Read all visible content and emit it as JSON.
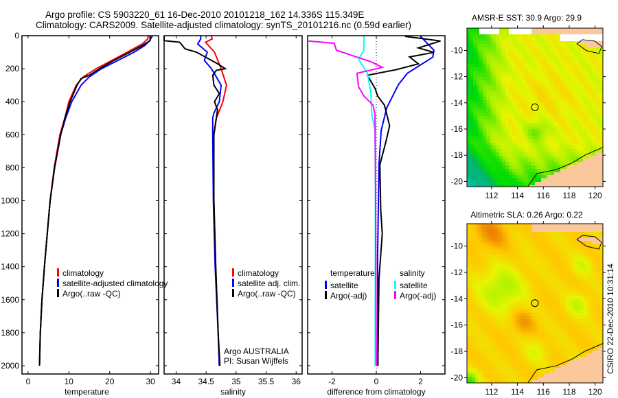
{
  "header": {
    "line1": "Argo profile: CS 5903220_61 16-Dec-2010 20101218_162 14.336S 115.349E",
    "line2": "Climatology: CARS2009. Satellite-adjusted climatology: synTS_20101216.nc (0.59d earlier)"
  },
  "footer_stamp": "CSIRO 22-Dec-2010 10:31:14",
  "chart_data": [
    {
      "type": "line",
      "id": "temperature",
      "xlabel": "temperature",
      "ylabel": "",
      "xlim": [
        -1.5,
        32
      ],
      "ylim": [
        2050,
        0
      ],
      "xticks": [
        0,
        10,
        20,
        30
      ],
      "yticks": [
        0,
        200,
        400,
        600,
        800,
        1000,
        1200,
        1400,
        1600,
        1800,
        2000
      ],
      "legend": [
        "climatology",
        "satellite-adjusted climatology",
        "Argo(..raw -QC)"
      ],
      "legend_position": "lower-right",
      "series": [
        {
          "name": "climatology",
          "color": "#ff0000",
          "depth": [
            0,
            20,
            50,
            100,
            150,
            200,
            250,
            300,
            400,
            500,
            600,
            800,
            1000,
            1200,
            1400,
            1600,
            1800,
            2000
          ],
          "values": [
            29.5,
            29.3,
            28,
            24.3,
            20.5,
            16.7,
            13.5,
            11.8,
            10,
            9,
            7.8,
            6.4,
            5.4,
            4.7,
            4,
            3.4,
            3,
            2.8
          ]
        },
        {
          "name": "satellite-adjusted climatology",
          "color": "#0000ff",
          "depth": [
            0,
            30,
            60,
            100,
            150,
            200,
            250,
            300,
            400,
            500,
            600,
            800,
            1000,
            1200,
            1400,
            1600,
            1800,
            2000
          ],
          "values": [
            30.5,
            29.8,
            28.6,
            26,
            22,
            18,
            15,
            13,
            10.7,
            9.2,
            8,
            6.5,
            5.4,
            4.7,
            4,
            3.4,
            3,
            2.8
          ]
        },
        {
          "name": "Argo(..raw -QC)",
          "color": "#000000",
          "depth": [
            0,
            30,
            60,
            100,
            150,
            200,
            240,
            260,
            300,
            400,
            500,
            600,
            800,
            1000,
            1200,
            1400,
            1600,
            1800,
            2000
          ],
          "values": [
            29.9,
            29.9,
            28,
            25,
            21,
            17.5,
            15,
            13,
            12,
            10.3,
            9,
            8,
            6.5,
            5.4,
            4.7,
            4,
            3.4,
            3,
            2.8
          ]
        }
      ]
    },
    {
      "type": "line",
      "id": "salinity",
      "xlabel": "salinity",
      "xlim": [
        33.8,
        36.1
      ],
      "ylim": [
        2050,
        0
      ],
      "xticks": [
        34,
        34.5,
        35,
        35.5,
        36
      ],
      "xticklabels": [
        "34",
        "34.5",
        "35",
        "35.5",
        "36"
      ],
      "legend": [
        "climatology",
        "satellite adj. clim.",
        "Argo(..raw -QC)"
      ],
      "legend_position": "lower-right",
      "annotation": [
        "Argo AUSTRALIA",
        "PI: Susan Wijffels"
      ],
      "series": [
        {
          "name": "climatology",
          "color": "#ff0000",
          "depth": [
            0,
            20,
            40,
            100,
            200,
            300,
            400,
            500,
            600,
            1000,
            1400,
            1800,
            2000
          ],
          "values": [
            34.59,
            34.6,
            34.49,
            34.64,
            34.75,
            34.84,
            34.78,
            34.67,
            34.63,
            34.63,
            34.66,
            34.7,
            34.72
          ]
        },
        {
          "name": "satellite adj. clim.",
          "color": "#0000ff",
          "depth": [
            0,
            20,
            50,
            100,
            150,
            200,
            300,
            400,
            470,
            500,
            600,
            1000,
            1400,
            1800,
            2000
          ],
          "values": [
            34.41,
            34.41,
            34.36,
            34.52,
            34.47,
            34.59,
            34.75,
            34.72,
            34.63,
            34.61,
            34.61,
            34.62,
            34.65,
            34.7,
            34.72
          ]
        },
        {
          "name": "Argo(..raw -QC)",
          "color": "#000000",
          "depth": [
            0,
            30,
            40,
            80,
            100,
            130,
            170,
            200,
            210,
            240,
            300,
            350,
            400,
            450,
            500,
            600,
            1000,
            1400,
            1800,
            2000
          ],
          "values": [
            33.8,
            33.8,
            34.06,
            34.15,
            34.34,
            34.49,
            34.69,
            34.82,
            34.67,
            34.61,
            34.63,
            34.72,
            34.64,
            34.69,
            34.67,
            34.63,
            34.63,
            34.66,
            34.7,
            34.73
          ]
        }
      ]
    },
    {
      "type": "line",
      "id": "difference",
      "xlabel": "difference from climatology",
      "xlim": [
        -3.1,
        3.1
      ],
      "ylim": [
        2050,
        0
      ],
      "xticks": [
        -2,
        0,
        2
      ],
      "legend_headers": [
        "temperature",
        "salinity"
      ],
      "legend": [
        "satellite",
        "Argo(-adj)",
        "satellite",
        "Argo(-adj)"
      ],
      "legend_position": "lower-center",
      "series": [
        {
          "name": "temperature satellite",
          "color": "#0000ff",
          "depth": [
            4,
            88,
            130,
            228,
            296,
            437,
            575,
            783,
            1340,
            2000
          ],
          "values": [
            2.0,
            2.6,
            2.55,
            1.4,
            1.0,
            0.47,
            0.22,
            0.12,
            0.06,
            0.07
          ]
        },
        {
          "name": "temperature Argo(-adj)",
          "color": "#000000",
          "depth": [
            4,
            32,
            74,
            101,
            129,
            171,
            206,
            240,
            324,
            365,
            421,
            546,
            644,
            783,
            1060,
            1199,
            1476,
            2000
          ],
          "values": [
            1.3,
            2.9,
            1.9,
            2.6,
            1.5,
            1.9,
            0.9,
            -0.4,
            -0.04,
            0.06,
            0.37,
            0.6,
            0.43,
            0.16,
            0.2,
            0.27,
            0.12,
            0.07
          ]
        },
        {
          "name": "salinity satellite",
          "color": "#00ffff",
          "depth": [
            4,
            88,
            143,
            228,
            338,
            476,
            575,
            921,
            2000
          ],
          "values": [
            -0.56,
            -0.56,
            -0.8,
            -0.4,
            -0.25,
            -0.2,
            -0.06,
            -0.04,
            -0.05
          ]
        },
        {
          "name": "salinity Argo(-adj)",
          "color": "#ff00ff",
          "depth": [
            32,
            46,
            88,
            115,
            157,
            192,
            228,
            310,
            365,
            421,
            476,
            800,
            2000
          ],
          "values": [
            -3.06,
            -1.9,
            -1.8,
            -1.2,
            -0.25,
            0.27,
            -0.87,
            -0.8,
            -0.56,
            -0.15,
            -0.06,
            -0.04,
            0.0
          ]
        }
      ]
    },
    {
      "type": "heatmap",
      "id": "sst-map",
      "title": "AMSR-E SST: 30.9 Argo: 29.9",
      "xlim": [
        110.1,
        120.6
      ],
      "ylim": [
        -20.4,
        -8.3
      ],
      "xticks": [
        112,
        114,
        116,
        118,
        120
      ],
      "yticks": [
        -10,
        -12,
        -14,
        -16,
        -18,
        -20
      ],
      "marker": {
        "lon": 115.349,
        "lat": -14.336
      }
    },
    {
      "type": "heatmap",
      "id": "sla-map",
      "title": "Altimetric SLA: 0.26 Argo: 0.22",
      "xlim": [
        110.1,
        120.6
      ],
      "ylim": [
        -20.4,
        -8.3
      ],
      "xticks": [
        112,
        114,
        116,
        118,
        120
      ],
      "yticks": [
        -10,
        -12,
        -14,
        -16,
        -18,
        -20
      ],
      "marker": {
        "lon": 115.349,
        "lat": -14.336
      }
    }
  ]
}
